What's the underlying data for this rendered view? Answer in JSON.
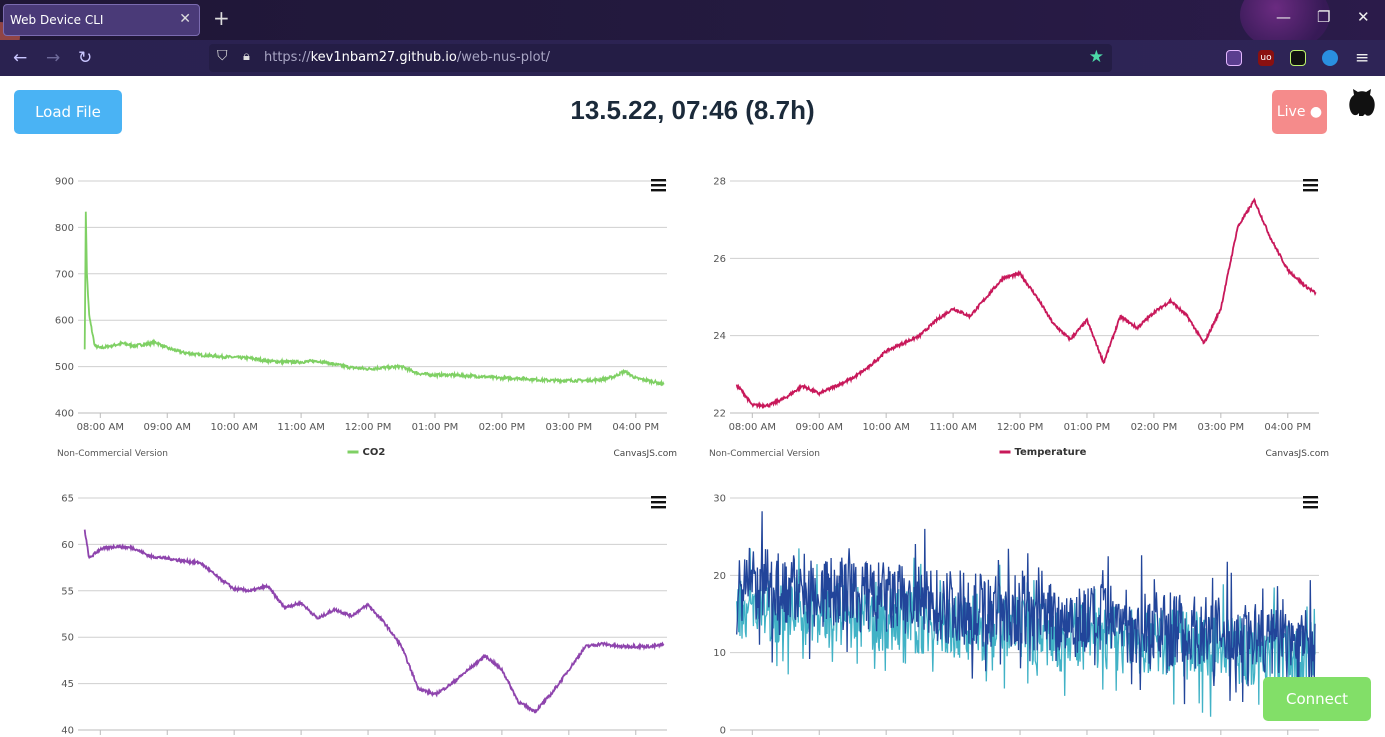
{
  "browser": {
    "tab_title": "Web Device CLI",
    "tab_close": "✕",
    "new_tab": "+",
    "url_scheme": "https://",
    "url_host": "kev1nbam27.github.io",
    "url_path": "/web-nus-plot/",
    "window_minimize": "—",
    "window_restore": "❐",
    "window_close": "✕",
    "extensions": [
      "pocket-icon",
      "ublock-icon",
      "extension-icon",
      "firefox-account-icon"
    ],
    "menu": "≡"
  },
  "page": {
    "load_button": "Load File",
    "title": "13.5.22, 07:46 (8.7h)",
    "live_button": "Live ●",
    "connect_button": "Connect"
  },
  "chart_data": [
    {
      "type": "line",
      "series": [
        {
          "name": "CO2",
          "color": "#7fd064",
          "x": [
            "07:46",
            "07:47",
            "07:48",
            "07:50",
            "07:55",
            "08:00",
            "08:10",
            "08:20",
            "08:30",
            "08:40",
            "08:50",
            "09:00",
            "09:15",
            "09:30",
            "09:45",
            "10:00",
            "10:15",
            "10:30",
            "10:45",
            "11:00",
            "11:15",
            "11:30",
            "11:45",
            "12:00",
            "12:15",
            "12:30",
            "12:45",
            "13:00",
            "13:15",
            "13:30",
            "13:45",
            "14:00",
            "14:15",
            "14:30",
            "14:45",
            "15:00",
            "15:15",
            "15:30",
            "15:40",
            "15:50",
            "16:00",
            "16:15",
            "16:25"
          ],
          "values": [
            540,
            835,
            700,
            610,
            545,
            540,
            545,
            550,
            545,
            548,
            552,
            540,
            530,
            525,
            522,
            520,
            518,
            512,
            510,
            510,
            512,
            505,
            498,
            495,
            498,
            500,
            485,
            482,
            482,
            480,
            478,
            475,
            475,
            472,
            470,
            470,
            470,
            472,
            478,
            490,
            475,
            468,
            462
          ]
        }
      ],
      "xlabel": "",
      "ylabel": "",
      "x_ticks": [
        "08:00 AM",
        "09:00 AM",
        "10:00 AM",
        "11:00 AM",
        "12:00 PM",
        "01:00 PM",
        "02:00 PM",
        "03:00 PM",
        "04:00 PM"
      ],
      "ylim": [
        400,
        900
      ],
      "y_ticks": [
        "400",
        "500",
        "600",
        "700",
        "800",
        "900"
      ],
      "watermark_left": "Non-Commercial Version",
      "watermark_right": "CanvasJS.com",
      "legend": "bottom"
    },
    {
      "type": "line",
      "series": [
        {
          "name": "Temperature",
          "color": "#c8185a",
          "x": [
            "07:46",
            "07:50",
            "08:00",
            "08:15",
            "08:30",
            "08:45",
            "09:00",
            "09:15",
            "09:30",
            "09:45",
            "10:00",
            "10:15",
            "10:30",
            "10:45",
            "11:00",
            "11:15",
            "11:30",
            "11:45",
            "12:00",
            "12:15",
            "12:30",
            "12:45",
            "13:00",
            "13:15",
            "13:30",
            "13:45",
            "14:00",
            "14:15",
            "14:30",
            "14:45",
            "15:00",
            "15:15",
            "15:30",
            "15:45",
            "16:00",
            "16:15",
            "16:25"
          ],
          "values": [
            22.7,
            22.6,
            22.2,
            22.2,
            22.4,
            22.7,
            22.5,
            22.7,
            22.9,
            23.2,
            23.6,
            23.8,
            24.0,
            24.4,
            24.7,
            24.5,
            25.0,
            25.5,
            25.6,
            25.0,
            24.3,
            23.9,
            24.4,
            23.3,
            24.5,
            24.2,
            24.6,
            24.9,
            24.5,
            23.8,
            24.7,
            26.8,
            27.5,
            26.5,
            25.7,
            25.3,
            25.1
          ]
        }
      ],
      "xlabel": "",
      "ylabel": "",
      "x_ticks": [
        "08:00 AM",
        "09:00 AM",
        "10:00 AM",
        "11:00 AM",
        "12:00 PM",
        "01:00 PM",
        "02:00 PM",
        "03:00 PM",
        "04:00 PM"
      ],
      "ylim": [
        22,
        28
      ],
      "y_ticks": [
        "22",
        "24",
        "26",
        "28"
      ],
      "watermark_left": "Non-Commercial Version",
      "watermark_right": "CanvasJS.com",
      "legend": "bottom"
    },
    {
      "type": "line",
      "series": [
        {
          "name": "",
          "color": "#8e44ad",
          "x": [
            "07:46",
            "07:50",
            "08:00",
            "08:15",
            "08:30",
            "08:45",
            "09:00",
            "09:15",
            "09:30",
            "09:45",
            "10:00",
            "10:15",
            "10:30",
            "10:45",
            "11:00",
            "11:15",
            "11:30",
            "11:45",
            "12:00",
            "12:15",
            "12:30",
            "12:45",
            "13:00",
            "13:15",
            "13:30",
            "13:45",
            "14:00",
            "14:15",
            "14:30",
            "14:45",
            "15:00",
            "15:15",
            "15:30",
            "15:45",
            "16:00",
            "16:15",
            "16:25"
          ],
          "values": [
            61.5,
            58.5,
            59.5,
            59.8,
            59.6,
            58.7,
            58.5,
            58.2,
            58.0,
            56.5,
            55.2,
            55.0,
            55.5,
            53.2,
            53.7,
            52.0,
            53.0,
            52.3,
            53.5,
            51.5,
            49.0,
            44.5,
            43.8,
            45.0,
            46.5,
            48.0,
            46.5,
            43.0,
            42.0,
            44.0,
            46.5,
            49.0,
            49.3,
            49.0,
            49.0,
            49.0,
            49.2
          ]
        }
      ],
      "xlabel": "",
      "ylabel": "",
      "ylim": [
        40,
        65
      ],
      "y_ticks": [
        "40",
        "45",
        "50",
        "55",
        "60",
        "65"
      ],
      "legend": "none"
    },
    {
      "type": "line",
      "series": [
        {
          "name": "",
          "color": "#41b2c6",
          "values_range": [
            10,
            22,
            3,
            16
          ]
        },
        {
          "name": "",
          "color": "#22459a",
          "values_range": [
            12,
            26,
            4,
            18
          ]
        }
      ],
      "xlabel": "",
      "ylabel": "",
      "ylim": [
        0,
        30
      ],
      "y_ticks": [
        "0",
        "10",
        "20",
        "30"
      ],
      "legend": "none"
    }
  ]
}
